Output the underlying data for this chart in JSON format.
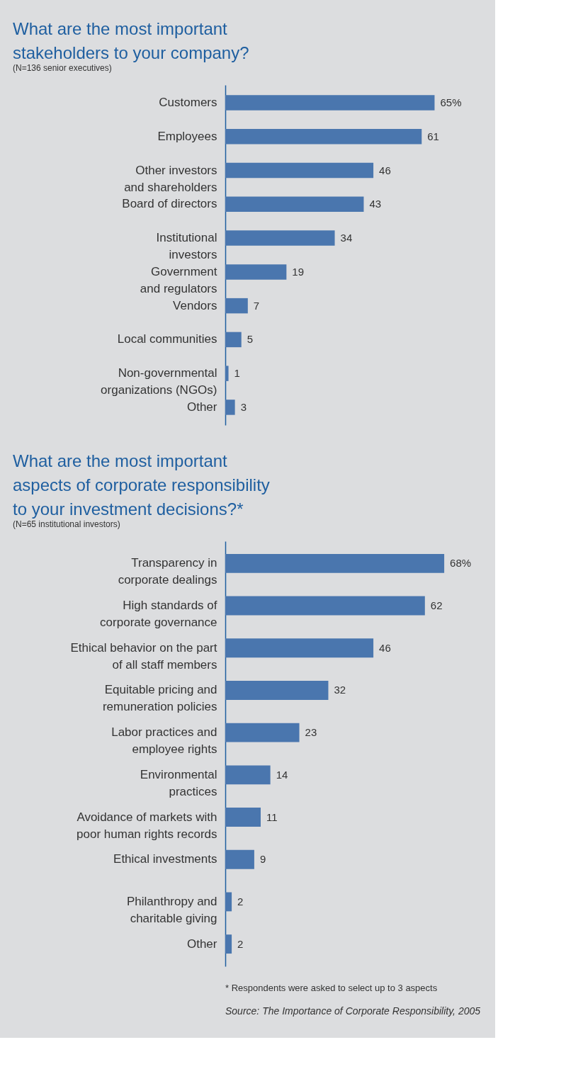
{
  "chart_data": [
    {
      "type": "bar",
      "orientation": "horizontal",
      "title": "What are the most important\nstakeholders to your company?",
      "subtitle": "(N=136 senior executives)",
      "categories": [
        "Customers",
        "Employees",
        "Other investors\nand shareholders",
        "Board of directors",
        "Institutional\ninvestors",
        "Government\nand regulators",
        "Vendors",
        "Local communities",
        "Non-governmental\norganizations (NGOs)",
        "Other"
      ],
      "values": [
        65,
        61,
        46,
        43,
        34,
        19,
        7,
        5,
        1,
        3
      ],
      "value_labels": [
        "65%",
        "61",
        "46",
        "43",
        "34",
        "19",
        "7",
        "5",
        "1",
        "3"
      ],
      "color": "#4a76ae"
    },
    {
      "type": "bar",
      "orientation": "horizontal",
      "title": "What are the most important\naspects of corporate responsibility\nto your investment decisions?*",
      "subtitle": "(N=65 institutional investors)",
      "categories": [
        "Transparency in\ncorporate dealings",
        "High standards of\ncorporate governance",
        "Ethical behavior on the part\nof all staff members",
        "Equitable pricing and\nremuneration policies",
        "Labor practices and\nemployee rights",
        "Environmental\npractices",
        "Avoidance of markets with\npoor human rights records",
        "Ethical investments",
        "Philanthropy and\ncharitable giving",
        "Other"
      ],
      "values": [
        68,
        62,
        46,
        32,
        23,
        14,
        11,
        9,
        2,
        2
      ],
      "value_labels": [
        "68%",
        "62",
        "46",
        "32",
        "23",
        "14",
        "11",
        "9",
        "2",
        "2"
      ],
      "color": "#4a76ae",
      "annotations": [
        "* Respondents were asked to select up to 3 aspects",
        "Source: The Importance of Corporate Responsibility, 2005"
      ]
    }
  ]
}
